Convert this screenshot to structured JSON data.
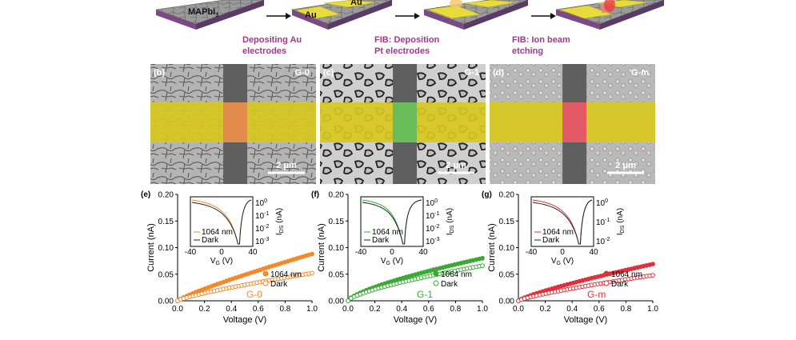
{
  "process": {
    "material": "MAPbI",
    "material_sub": "3",
    "au_label": "Au",
    "steps": [
      {
        "line1": "Depositing Au",
        "line2": "electrodes"
      },
      {
        "line1": "FIB: Deposition",
        "line2": "Pt electrodes"
      },
      {
        "line1": "FIB: Ion beam",
        "line2": "etching"
      }
    ]
  },
  "sem_panels": [
    {
      "label": "(b)",
      "name": "G-0",
      "scale": "2 μm",
      "channel_color": "#f0904a"
    },
    {
      "label": "(c)",
      "name": "G-1",
      "scale": "2 μm",
      "channel_color": "#6cc75a"
    },
    {
      "label": "(d)",
      "name": "G-m",
      "scale": "2 μm",
      "channel_color": "#ef5a66"
    }
  ],
  "chart_data": [
    {
      "type": "scatter",
      "panel": "(e)",
      "name": "G-0",
      "color": "#f08a2a",
      "xlabel": "Voltage (V)",
      "ylabel": "Current (nA)",
      "xlim": [
        0,
        1.0
      ],
      "ylim": [
        0,
        0.2
      ],
      "xticks": [
        "0.0",
        "0.2",
        "0.4",
        "0.6",
        "0.8",
        "1.0"
      ],
      "yticks": [
        "0.00",
        "0.05",
        "0.10",
        "0.15",
        "0.20"
      ],
      "series": [
        {
          "name": "1064 nm",
          "filled": true,
          "x_max": 1.0,
          "y_max": 0.088,
          "shape": 0.85
        },
        {
          "name": "Dark",
          "filled": false,
          "x_max": 1.0,
          "y_max": 0.052,
          "shape": 0.8
        }
      ],
      "inset": {
        "xlabel": "V",
        "xlabel_sub": "G",
        "xlabel_unit": "(V)",
        "ylabel": "I",
        "ylabel_sub": "DS",
        "ylabel_unit": "(nA)",
        "xticks": [
          "-40",
          "0",
          "40"
        ],
        "yticks": [
          "10",
          "10",
          "10",
          "10"
        ],
        "yticks_exp": [
          "0",
          "-1",
          "-2",
          "-3"
        ],
        "legend": [
          "1064 nm",
          "Dark"
        ],
        "min_x": 22
      }
    },
    {
      "type": "scatter",
      "panel": "(f)",
      "name": "G-1",
      "color": "#3aaa35",
      "xlabel": "Voltage (V)",
      "ylabel": "Current (nA)",
      "xlim": [
        0,
        1.0
      ],
      "ylim": [
        0,
        0.2
      ],
      "xticks": [
        "0.0",
        "0.2",
        "0.4",
        "0.6",
        "0.8",
        "1.0"
      ],
      "yticks": [
        "0.00",
        "0.05",
        "0.10",
        "0.15",
        "0.20"
      ],
      "series": [
        {
          "name": "1064 nm",
          "filled": true,
          "x_max": 1.0,
          "y_max": 0.08,
          "shape": 0.7
        },
        {
          "name": "Dark",
          "filled": false,
          "x_max": 1.0,
          "y_max": 0.066,
          "shape": 0.7
        }
      ],
      "inset": {
        "xlabel": "V",
        "xlabel_sub": "G",
        "xlabel_unit": "(V)",
        "ylabel": "I",
        "ylabel_sub": "DS",
        "ylabel_unit": "(nA)",
        "xticks": [
          "-40",
          "0",
          "40"
        ],
        "yticks": [
          "10",
          "10",
          "10",
          "10"
        ],
        "yticks_exp": [
          "0",
          "-1",
          "-2",
          "-3"
        ],
        "legend": [
          "1064 nm",
          "Dark"
        ],
        "min_x": 15
      }
    },
    {
      "type": "scatter",
      "panel": "(g)",
      "name": "G-m",
      "color": "#e0303a",
      "xlabel": "Voltage (V)",
      "ylabel": "Current (nA)",
      "xlim": [
        0,
        1.0
      ],
      "ylim": [
        0,
        0.2
      ],
      "xticks": [
        "0.0",
        "0.2",
        "0.4",
        "0.6",
        "0.8",
        "1.0"
      ],
      "yticks": [
        "0.00",
        "0.05",
        "0.10",
        "0.15",
        "0.20"
      ],
      "series": [
        {
          "name": "1064 nm",
          "filled": true,
          "x_max": 1.0,
          "y_max": 0.069,
          "shape": 0.8
        },
        {
          "name": "Dark",
          "filled": false,
          "x_max": 1.0,
          "y_max": 0.048,
          "shape": 0.8
        }
      ],
      "inset": {
        "xlabel": "V",
        "xlabel_sub": "G",
        "xlabel_unit": "(V)",
        "ylabel": "I",
        "ylabel_sub": "DS",
        "ylabel_unit": "(nA)",
        "xticks": [
          "-40",
          "0",
          "40"
        ],
        "yticks": [
          "10",
          "10",
          "10"
        ],
        "yticks_exp": [
          "0",
          "-1",
          "-2"
        ],
        "legend": [
          "1064 nm",
          "Dark"
        ],
        "min_x": 22
      }
    }
  ]
}
